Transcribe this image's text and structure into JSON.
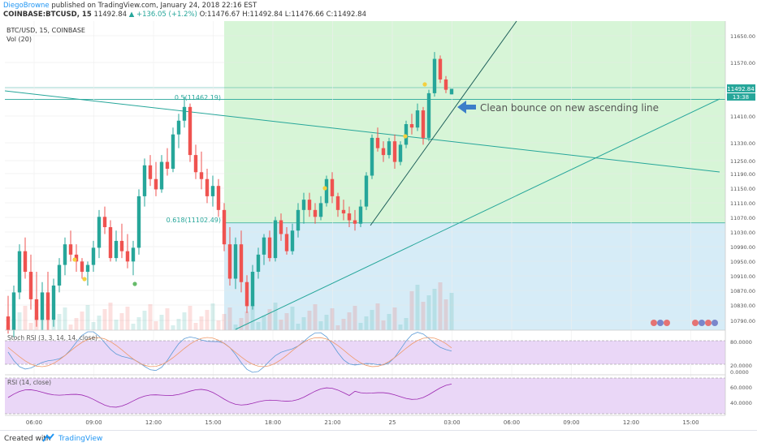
{
  "header": {
    "author": "DiegoBrowne",
    "published": "published on TradingView.com, January 24, 2018 22:16 EST",
    "symbol": "COINBASE:BTCUSD, 15",
    "price": "11492.84",
    "change": "▲ +136.05 (+1.2%)",
    "ohlc": "O:11476.67 H:11492.84 L:11476.66 C:11492.84"
  },
  "legend": {
    "symbol_line": "BTC/USD, 15, COINBASE",
    "volume": "Vol (20)"
  },
  "annotation": "Clean bounce on new ascending line",
  "fib": [
    {
      "label": "0.5(11462.19)",
      "level": 11462.19
    },
    {
      "label": "0.618(11102.49)",
      "level": 11102.49
    }
  ],
  "price_axis": {
    "ticks": [
      "11650.00",
      "11570.00",
      "11490.00",
      "11410.00",
      "11330.00",
      "11250.00",
      "11190.00",
      "11150.00",
      "11110.00",
      "11070.00",
      "11030.00",
      "10990.00",
      "10950.00",
      "10910.00",
      "10870.00",
      "10830.00",
      "10790.00"
    ],
    "last_price_label": "11492.84",
    "countdown": "13:38"
  },
  "time_axis": [
    "06:00",
    "09:00",
    "12:00",
    "15:00",
    "18:00",
    "21:00",
    "25",
    "03:00",
    "06:00",
    "09:00",
    "12:00",
    "15:00"
  ],
  "stoch_rsi": {
    "label": "Stoch RSI (3, 3, 14, 14, close)",
    "ticks": [
      "80.0000",
      "20.0000",
      "0.0000"
    ],
    "upper": 80,
    "lower": 20
  },
  "rsi": {
    "label": "RSI (14, close)",
    "ticks": [
      "60.0000",
      "40.0000"
    ],
    "upper": 70,
    "lower": 30
  },
  "footer": {
    "made_with": "Created with",
    "brand": "TradingView"
  },
  "colors": {
    "bull": "#26a69a",
    "bear": "#ef5350",
    "zone_green": "#d7f5d7",
    "zone_blue": "#d6ecf7",
    "osc_fill": "#ead7f7",
    "trend": "#26a69a",
    "arrow": "#3d7ec9"
  },
  "chart_data": {
    "type": "candlestick",
    "title": "BTC/USD, 15, COINBASE",
    "ylim": [
      10790,
      11690
    ],
    "candles": [
      [
        10830,
        10890,
        10780,
        10790
      ],
      [
        10790,
        10920,
        10770,
        10900
      ],
      [
        10900,
        11040,
        10880,
        11020
      ],
      [
        11020,
        11060,
        10940,
        10960
      ],
      [
        10960,
        11010,
        10850,
        10880
      ],
      [
        10880,
        10960,
        10800,
        10820
      ],
      [
        10820,
        10930,
        10790,
        10900
      ],
      [
        10900,
        10960,
        10790,
        10820
      ],
      [
        10820,
        10940,
        10800,
        10920
      ],
      [
        10920,
        11000,
        10900,
        10980
      ],
      [
        10980,
        11060,
        10950,
        11040
      ],
      [
        11040,
        11080,
        10990,
        11010
      ],
      [
        11010,
        11040,
        10960,
        10990
      ],
      [
        10990,
        11000,
        10940,
        10960
      ],
      [
        10960,
        10990,
        10920,
        10980
      ],
      [
        10980,
        11050,
        10960,
        11030
      ],
      [
        11030,
        11140,
        11000,
        11120
      ],
      [
        11120,
        11150,
        11070,
        11090
      ],
      [
        11090,
        11110,
        10990,
        11000
      ],
      [
        11000,
        11080,
        10990,
        11050
      ],
      [
        11050,
        11100,
        11000,
        11020
      ],
      [
        11020,
        11070,
        10970,
        10990
      ],
      [
        10990,
        11050,
        10950,
        11030
      ],
      [
        11030,
        11200,
        11010,
        11180
      ],
      [
        11180,
        11290,
        11150,
        11270
      ],
      [
        11270,
        11300,
        11210,
        11230
      ],
      [
        11230,
        11280,
        11180,
        11200
      ],
      [
        11200,
        11300,
        11190,
        11280
      ],
      [
        11280,
        11320,
        11240,
        11260
      ],
      [
        11260,
        11380,
        11250,
        11360
      ],
      [
        11360,
        11420,
        11320,
        11400
      ],
      [
        11400,
        11470,
        11380,
        11440
      ],
      [
        11440,
        11450,
        11280,
        11300
      ],
      [
        11300,
        11330,
        11230,
        11250
      ],
      [
        11250,
        11310,
        11200,
        11230
      ],
      [
        11230,
        11260,
        11160,
        11180
      ],
      [
        11180,
        11240,
        11150,
        11210
      ],
      [
        11210,
        11230,
        11120,
        11140
      ],
      [
        11140,
        11160,
        11020,
        11040
      ],
      [
        11040,
        11090,
        10920,
        10940
      ],
      [
        10940,
        11060,
        10910,
        11040
      ],
      [
        11040,
        11080,
        10900,
        10930
      ],
      [
        10930,
        10950,
        10840,
        10860
      ],
      [
        10860,
        10980,
        10850,
        10960
      ],
      [
        10960,
        11030,
        10940,
        11010
      ],
      [
        11010,
        11070,
        10980,
        11060
      ],
      [
        11060,
        11080,
        10990,
        11000
      ],
      [
        11000,
        11120,
        10990,
        11110
      ],
      [
        11110,
        11130,
        11050,
        11070
      ],
      [
        11070,
        11090,
        11010,
        11020
      ],
      [
        11020,
        11100,
        11010,
        11080
      ],
      [
        11080,
        11160,
        11060,
        11140
      ],
      [
        11140,
        11190,
        11100,
        11170
      ],
      [
        11170,
        11190,
        11120,
        11140
      ],
      [
        11140,
        11160,
        11100,
        11120
      ],
      [
        11120,
        11180,
        11110,
        11160
      ],
      [
        11160,
        11240,
        11150,
        11230
      ],
      [
        11230,
        11250,
        11160,
        11180
      ],
      [
        11180,
        11190,
        11120,
        11140
      ],
      [
        11140,
        11170,
        11110,
        11130
      ],
      [
        11130,
        11150,
        11090,
        11110
      ],
      [
        11110,
        11140,
        11080,
        11100
      ],
      [
        11100,
        11170,
        11090,
        11150
      ],
      [
        11150,
        11250,
        11140,
        11240
      ],
      [
        11240,
        11360,
        11230,
        11350
      ],
      [
        11350,
        11380,
        11310,
        11320
      ],
      [
        11320,
        11340,
        11280,
        11300
      ],
      [
        11300,
        11350,
        11290,
        11340
      ],
      [
        11340,
        11360,
        11260,
        11280
      ],
      [
        11280,
        11340,
        11270,
        11330
      ],
      [
        11330,
        11400,
        11320,
        11390
      ],
      [
        11390,
        11420,
        11360,
        11380
      ],
      [
        11380,
        11450,
        11370,
        11430
      ],
      [
        11430,
        11440,
        11330,
        11350
      ],
      [
        11350,
        11490,
        11340,
        11480
      ],
      [
        11480,
        11600,
        11470,
        11580
      ],
      [
        11580,
        11590,
        11510,
        11520
      ],
      [
        11520,
        11530,
        11480,
        11490
      ],
      [
        11476.67,
        11492.84,
        11476.66,
        11492.84
      ]
    ]
  }
}
